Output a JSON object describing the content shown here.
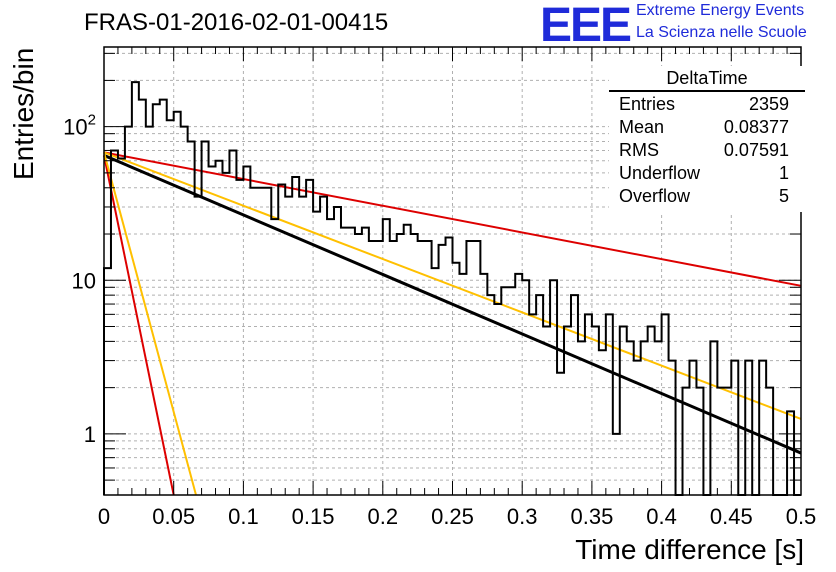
{
  "header": {
    "run_title": "FRAS-01-2016-02-01-00415",
    "logo_text": "EEE",
    "logo_line1": "Extreme Energy Events",
    "logo_line2": "La Scienza nelle Scuole"
  },
  "stats": {
    "title": "DeltaTime",
    "rows": [
      {
        "label": "Entries",
        "value": "2359"
      },
      {
        "label": "Mean",
        "value": "0.08377"
      },
      {
        "label": "RMS",
        "value": "0.07591"
      },
      {
        "label": "Underflow",
        "value": "1"
      },
      {
        "label": "Overflow",
        "value": "5"
      }
    ]
  },
  "chart_data": {
    "type": "line",
    "xlabel": "Time difference [s]",
    "ylabel": "Entries/bin",
    "xlim": [
      0,
      0.5
    ],
    "ylim": [
      0.4,
      330
    ],
    "yscale": "log",
    "grid": true,
    "x_ticks": [
      "0",
      "0.05",
      "0.1",
      "0.15",
      "0.2",
      "0.25",
      "0.3",
      "0.35",
      "0.4",
      "0.45",
      "0.5"
    ],
    "y_ticks": [
      {
        "value": 1,
        "label": "1"
      },
      {
        "value": 10,
        "label": "10"
      },
      {
        "value": 100,
        "label": "10^2"
      }
    ],
    "histogram": {
      "name": "DeltaTime",
      "bin_width": 0.005,
      "counts": [
        12,
        70,
        62,
        100,
        195,
        150,
        100,
        140,
        150,
        110,
        125,
        100,
        80,
        35,
        80,
        55,
        60,
        50,
        70,
        45,
        55,
        40,
        40,
        40,
        25,
        42,
        35,
        47,
        35,
        45,
        28,
        35,
        25,
        30,
        22,
        22,
        20,
        22,
        18,
        18,
        25,
        18,
        20,
        23,
        20,
        18,
        18,
        12,
        17,
        19,
        13,
        11,
        18,
        18,
        11,
        8,
        7,
        9,
        9,
        11,
        10,
        6,
        8,
        5,
        10,
        2.5,
        5,
        8,
        4,
        6,
        5,
        3.5,
        6,
        1,
        5,
        4,
        3,
        4,
        5,
        4,
        6,
        3,
        0.1,
        2,
        3,
        2,
        0.1,
        4,
        2,
        2,
        3,
        0.1,
        3,
        0.1,
        3,
        2,
        0.1,
        0.1,
        1.4,
        0.1
      ]
    },
    "series": [
      {
        "color": "#000000",
        "points": [
          [
            0,
            65
          ],
          [
            0.5,
            0.75
          ]
        ]
      },
      {
        "color": "#dd0000",
        "points": [
          [
            0,
            68
          ],
          [
            0.5,
            9.2
          ]
        ]
      },
      {
        "color": "#ffc000",
        "points": [
          [
            0,
            68
          ],
          [
            0.5,
            1.25
          ]
        ]
      },
      {
        "color": "#dd0000",
        "points": [
          [
            0,
            65
          ],
          [
            0.05,
            0.4
          ]
        ]
      },
      {
        "color": "#ffc000",
        "points": [
          [
            0,
            68
          ],
          [
            0.066,
            0.4
          ]
        ]
      }
    ]
  }
}
